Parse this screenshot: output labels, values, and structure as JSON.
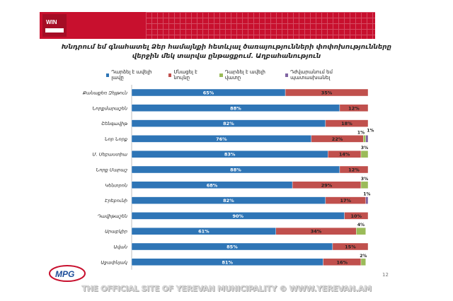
{
  "header": {
    "title_line1": "Խնդրում եմ գնահատել Ձեր համայնքի հետևյալ ծառայությունների փոփոխությունները",
    "title_line2": "վերջին մեկ տարվա ընթացքում. Աղբահանություն"
  },
  "colors": {
    "banner": "#c8102e",
    "better": "#2e75b6",
    "same": "#c0504d",
    "worse": "#9bbb59",
    "dont_know": "#8064a2"
  },
  "chart_data": {
    "type": "bar",
    "orientation": "horizontal",
    "stacked": true,
    "categories": [
      "Քանաքեռ Զեյթուն",
      "Նորքմարաշեն",
      "Շենգավիթ",
      "Նոր Նորք",
      "Մ. Սեբաստիա",
      "Նորք Մարաշ",
      "Կենտրոն",
      "Էրեբունի",
      "Դավիթաշեն",
      "Արաբկիր",
      "Ավան",
      "Աջափնյակ"
    ],
    "series": [
      {
        "name": "Դարձել է ավելի լավը",
        "color": "#2e75b6",
        "values": [
          65,
          88,
          82,
          76,
          83,
          88,
          68,
          82,
          90,
          61,
          85,
          81
        ],
        "labels": [
          "65%",
          "88%",
          "82%",
          "76%",
          "83%",
          "88%",
          "68%",
          "82%",
          "90%",
          "61%",
          "85%",
          "81%"
        ]
      },
      {
        "name": "Մնացել է նույնը",
        "color": "#c0504d",
        "values": [
          35,
          12,
          18,
          22,
          14,
          12,
          29,
          17,
          10,
          34,
          15,
          16
        ],
        "labels": [
          "35%",
          "12%",
          "18%",
          "22%",
          "14%",
          "12%",
          "29%",
          "17%",
          "10%",
          "34%",
          "15%",
          "16%"
        ]
      },
      {
        "name": "Դարձել է ավելի վատը",
        "color": "#9bbb59",
        "values": [
          0,
          0,
          0,
          1,
          3,
          0,
          3,
          0,
          0,
          4,
          0,
          2
        ],
        "labels": [
          "",
          "",
          "",
          "1%",
          "3%",
          "",
          "3%",
          "",
          "",
          "4%",
          "",
          "2%"
        ]
      },
      {
        "name": "Դժվարանում եմ պատասխանել",
        "color": "#8064a2",
        "values": [
          0,
          0,
          0,
          1,
          0,
          0,
          0,
          1,
          0,
          0,
          0,
          0
        ],
        "labels": [
          "",
          "",
          "",
          "1%",
          "",
          "",
          "",
          "1%",
          "",
          "",
          "",
          ""
        ]
      }
    ],
    "xlim": [
      0,
      100
    ],
    "legend_position": "top",
    "grid": false
  },
  "slide": {
    "page_number": "12",
    "logo_text": "MPG",
    "footer": "THE OFFICIAL SITE OF YEREVAN MUNICIPALITY © WWW.YEREVAN.AM"
  }
}
